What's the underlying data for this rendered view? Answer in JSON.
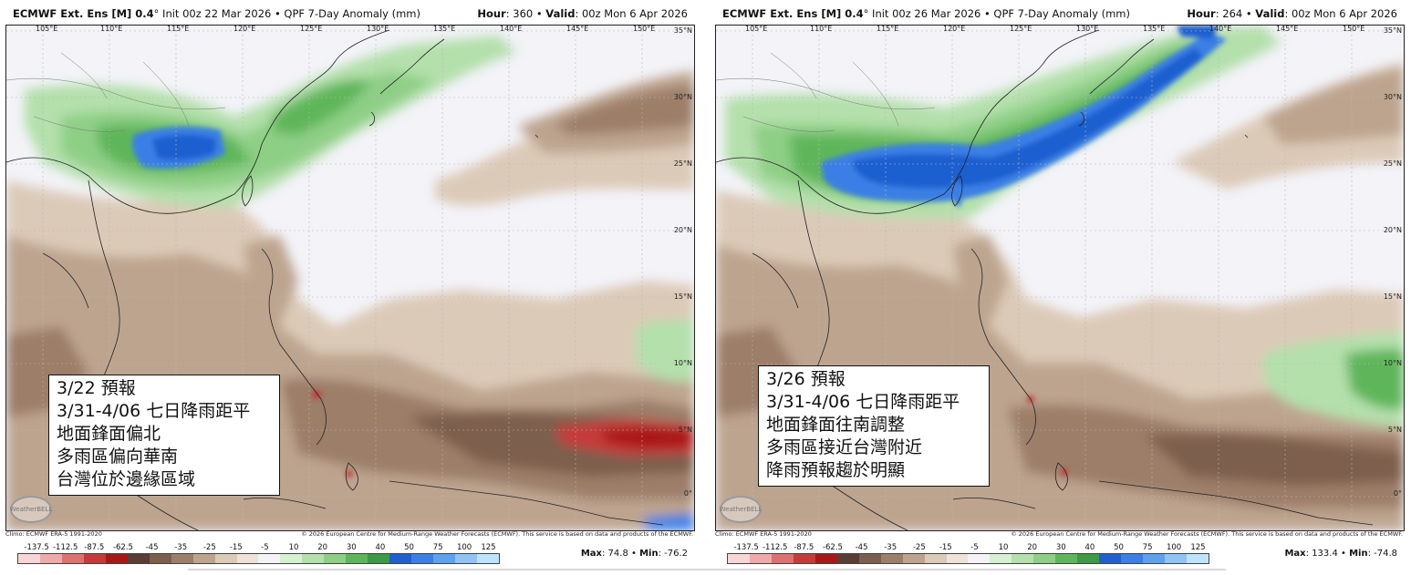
{
  "colors": {
    "negative_ramp": [
      "#f8d6d6",
      "#eeaaaa",
      "#de7070",
      "#c63a3a",
      "#a81818",
      "#5a3d33",
      "#7d5e4d",
      "#9c7e69",
      "#bda48f",
      "#dccab8",
      "#eee3d6"
    ],
    "positive_ramp": [
      "#f3f3f8",
      "#d6f0d2",
      "#b4e0ac",
      "#8ecf86",
      "#5fb65a",
      "#3b9a43",
      "#1f5fd0",
      "#3a7fe6",
      "#5ea1ef",
      "#8fc4f5",
      "#bde4fb"
    ]
  },
  "left": {
    "title_model": "ECMWF Ext. Ens [M] 0.4",
    "title_rest": "° Init 00z 22 Mar 2026 • QPF 7-Day Anomaly (mm)",
    "hour_label": "Hour",
    "hour_value": ": 360 • ",
    "valid_label": "Valid",
    "valid_value": ": 00z Mon 6 Apr 2026",
    "note_lines": [
      "3/22 預報",
      "3/31-4/06 七日降雨距平",
      "地面鋒面偏北",
      "多雨區偏向華南",
      "台灣位於邊緣區域"
    ],
    "max_label": "Max",
    "max_min_value": ": 74.8 • ",
    "min_label": "Min",
    "min_value": ": -76.2"
  },
  "right": {
    "title_model": "ECMWF Ext. Ens [M] 0.4",
    "title_rest": "° Init 00z 26 Mar 2026 • QPF 7-Day Anomaly (mm)",
    "hour_label": "Hour",
    "hour_value": ": 264 • ",
    "valid_label": "Valid",
    "valid_value": ": 00z Mon 6 Apr 2026",
    "note_lines": [
      "3/26 預報",
      "3/31-4/06 七日降雨距平",
      "地面鋒面往南調整",
      "多雨區接近台灣附近",
      "降雨預報趨於明顯"
    ],
    "max_label": "Max",
    "max_min_value": ": 133.4 • ",
    "min_label": "Min",
    "min_value": ": -74.8"
  },
  "lon_labels": [
    "105°E",
    "110°E",
    "115°E",
    "120°E",
    "125°E",
    "130°E",
    "135°E",
    "140°E",
    "145°E",
    "150°E"
  ],
  "lat_labels": [
    "35°N",
    "30°N",
    "25°N",
    "20°N",
    "15°N",
    "10°N",
    "5°N",
    "0°"
  ],
  "legend_ticks": [
    "-137.5",
    "-112.5",
    "-87.5",
    "-62.5",
    "-45",
    "-35",
    "-25",
    "-15",
    "-5",
    "10",
    "20",
    "30",
    "40",
    "50",
    "75",
    "100",
    "125"
  ],
  "climo_text": "Climo: ECMWF ERA-5 1991-2020",
  "copyright_text": "© 2026 European Centre for Medium-Range Weather Forecasts (ECMWF). This service is based on data and products of the ECMWF.",
  "logo_text": "WeatherBELL"
}
